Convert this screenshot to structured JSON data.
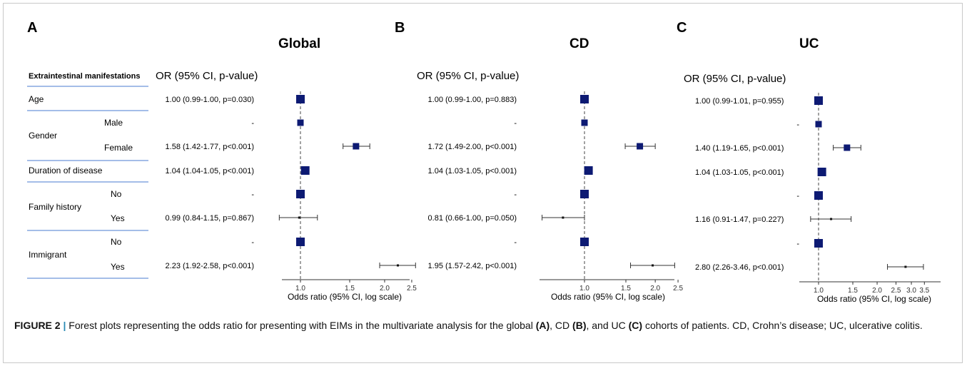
{
  "figure": {
    "panels": [
      {
        "letter": "A",
        "title": "Global",
        "or_header": "OR (95% CI, p-value)"
      },
      {
        "letter": "B",
        "title": "CD",
        "or_header": "OR (95% CI, p-value)"
      },
      {
        "letter": "C",
        "title": "UC",
        "or_header": "OR (95% CI, p-value)"
      }
    ],
    "table": {
      "header": "Extraintestinal manifestations",
      "groups": [
        "Age",
        "Gender",
        "Duration of disease",
        "Family history",
        "Immigrant"
      ],
      "sublevels": [
        "Male",
        "Female",
        "No",
        "Yes",
        "No",
        "Yes"
      ]
    },
    "axis_label": "Odds ratio (95% CI, log scale)",
    "caption": {
      "fig_num": "FIGURE 2",
      "separator": "|",
      "text_1": " Forest plots representing the odds ratio for presenting with EIMs in the multivariate analysis for the global ",
      "A": "(A)",
      "text_2": ", CD ",
      "B": "(B)",
      "text_3": ", and UC ",
      "C": "(C)",
      "text_4": " cohorts of patients. CD, Crohn’s disease; UC, ulcerative colitis."
    }
  },
  "colors": {
    "marker": "#0d1a73",
    "rule": "#4a7bd0",
    "ci": "#333333"
  },
  "chart_data": [
    {
      "type": "forest",
      "title": "Global",
      "xlabel": "Odds ratio (95% CI, log scale)",
      "xscale": "log",
      "xticks": [
        "1.0",
        "1.5",
        "2.0",
        "2.5"
      ],
      "reference_line": 1.0,
      "rows": [
        {
          "label": "Age",
          "or": 1.0,
          "lo": 0.99,
          "hi": 1.0,
          "text": "1.00 (0.99-1.00, p=0.030)",
          "marker": "large"
        },
        {
          "label": "Male",
          "or": 1.0,
          "lo": 1.0,
          "hi": 1.0,
          "text": "-",
          "marker": "medium"
        },
        {
          "label": "Female",
          "or": 1.58,
          "lo": 1.42,
          "hi": 1.77,
          "text": "1.58 (1.42-1.77, p<0.001)",
          "marker": "medium"
        },
        {
          "label": "Duration of disease",
          "or": 1.04,
          "lo": 1.04,
          "hi": 1.05,
          "text": "1.04 (1.04-1.05, p<0.001)",
          "marker": "large"
        },
        {
          "label": "Family history: No",
          "or": 1.0,
          "lo": 1.0,
          "hi": 1.0,
          "text": "-",
          "marker": "large"
        },
        {
          "label": "Family history: Yes",
          "or": 0.99,
          "lo": 0.84,
          "hi": 1.15,
          "text": "0.99 (0.84-1.15, p=0.867)",
          "marker": "dot"
        },
        {
          "label": "Immigrant: No",
          "or": 1.0,
          "lo": 1.0,
          "hi": 1.0,
          "text": "-",
          "marker": "large"
        },
        {
          "label": "Immigrant: Yes",
          "or": 2.23,
          "lo": 1.92,
          "hi": 2.58,
          "text": "2.23 (1.92-2.58, p<0.001)",
          "marker": "dot"
        }
      ]
    },
    {
      "type": "forest",
      "title": "CD",
      "xlabel": "Odds ratio (95% CI, log scale)",
      "xscale": "log",
      "xticks": [
        "1.0",
        "1.5",
        "2.0",
        "2.5"
      ],
      "reference_line": 1.0,
      "rows": [
        {
          "label": "Age",
          "or": 1.0,
          "lo": 0.99,
          "hi": 1.0,
          "text": "1.00 (0.99-1.00, p=0.883)",
          "marker": "large"
        },
        {
          "label": "Male",
          "or": 1.0,
          "lo": 1.0,
          "hi": 1.0,
          "text": "-",
          "marker": "medium"
        },
        {
          "label": "Female",
          "or": 1.72,
          "lo": 1.49,
          "hi": 2.0,
          "text": "1.72 (1.49-2.00, p<0.001)",
          "marker": "medium"
        },
        {
          "label": "Duration of disease",
          "or": 1.04,
          "lo": 1.03,
          "hi": 1.05,
          "text": "1.04 (1.03-1.05, p<0.001)",
          "marker": "large"
        },
        {
          "label": "Family history: No",
          "or": 1.0,
          "lo": 1.0,
          "hi": 1.0,
          "text": "-",
          "marker": "large"
        },
        {
          "label": "Family history: Yes",
          "or": 0.81,
          "lo": 0.66,
          "hi": 1.0,
          "text": "0.81 (0.66-1.00, p=0.050)",
          "marker": "dot"
        },
        {
          "label": "Immigrant: No",
          "or": 1.0,
          "lo": 1.0,
          "hi": 1.0,
          "text": "-",
          "marker": "large"
        },
        {
          "label": "Immigrant: Yes",
          "or": 1.95,
          "lo": 1.57,
          "hi": 2.42,
          "text": "1.95 (1.57-2.42, p<0.001)",
          "marker": "dot"
        }
      ]
    },
    {
      "type": "forest",
      "title": "UC",
      "xlabel": "Odds ratio (95% CI, log scale)",
      "xscale": "log",
      "xticks": [
        "1.0",
        "1.5",
        "2.0",
        "2.5",
        "3.0",
        "3.5"
      ],
      "reference_line": 1.0,
      "rows": [
        {
          "label": "Age",
          "or": 1.0,
          "lo": 0.99,
          "hi": 1.01,
          "text": "1.00 (0.99-1.01, p=0.955)",
          "marker": "large"
        },
        {
          "label": "Male",
          "or": 1.0,
          "lo": 1.0,
          "hi": 1.0,
          "text": "-",
          "marker": "medium"
        },
        {
          "label": "Female",
          "or": 1.4,
          "lo": 1.19,
          "hi": 1.65,
          "text": "1.40 (1.19-1.65, p<0.001)",
          "marker": "medium"
        },
        {
          "label": "Duration of disease",
          "or": 1.04,
          "lo": 1.03,
          "hi": 1.05,
          "text": "1.04 (1.03-1.05, p<0.001)",
          "marker": "large"
        },
        {
          "label": "Family history: No",
          "or": 1.0,
          "lo": 1.0,
          "hi": 1.0,
          "text": "-",
          "marker": "large"
        },
        {
          "label": "Family history: Yes",
          "or": 1.16,
          "lo": 0.91,
          "hi": 1.47,
          "text": "1.16 (0.91-1.47, p=0.227)",
          "marker": "dot"
        },
        {
          "label": "Immigrant: No",
          "or": 1.0,
          "lo": 1.0,
          "hi": 1.0,
          "text": "-",
          "marker": "large"
        },
        {
          "label": "Immigrant: Yes",
          "or": 2.8,
          "lo": 2.26,
          "hi": 3.46,
          "text": "2.80 (2.26-3.46, p<0.001)",
          "marker": "dot"
        }
      ]
    }
  ]
}
